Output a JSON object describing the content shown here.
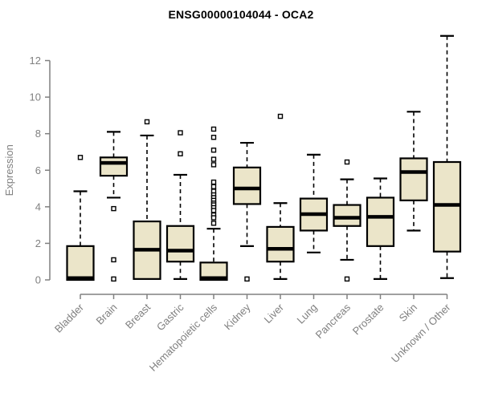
{
  "chart_data": {
    "type": "boxplot",
    "title": "ENSG00000104044 - OCA2",
    "ylabel": "Expression",
    "xlabel": "",
    "yticks": [
      0,
      2,
      4,
      6,
      8,
      10,
      12
    ],
    "ylim": [
      0,
      13.5
    ],
    "grid": false,
    "legend": "none",
    "categories": [
      "Bladder",
      "Brain",
      "Breast",
      "Gastric",
      "Hematopoietic cells",
      "Kidney",
      "Liver",
      "Lung",
      "Pancreas",
      "Prostate",
      "Skin",
      "Unknown / Other"
    ],
    "series": [
      {
        "category": "Bladder",
        "whisker_low": 0.0,
        "q1": 0.0,
        "median": 0.1,
        "q3": 1.85,
        "whisker_high": 4.85,
        "outliers": [
          6.7
        ]
      },
      {
        "category": "Brain",
        "whisker_low": 4.5,
        "q1": 5.7,
        "median": 6.4,
        "q3": 6.7,
        "whisker_high": 8.1,
        "outliers": [
          3.9,
          1.1,
          0.05
        ]
      },
      {
        "category": "Breast",
        "whisker_low": 0.05,
        "q1": 0.05,
        "median": 1.65,
        "q3": 3.2,
        "whisker_high": 7.9,
        "outliers": [
          8.65
        ]
      },
      {
        "category": "Gastric",
        "whisker_low": 0.05,
        "q1": 1.0,
        "median": 1.6,
        "q3": 2.95,
        "whisker_high": 5.75,
        "outliers": [
          8.05,
          6.9
        ]
      },
      {
        "category": "Hematopoietic cells",
        "whisker_low": 0.0,
        "q1": 0.0,
        "median": 0.1,
        "q3": 0.95,
        "whisker_high": 2.8,
        "outliers": [
          8.25,
          7.8,
          7.1,
          6.6,
          6.3,
          5.35,
          5.1,
          4.85,
          4.65,
          4.5,
          4.35,
          4.2,
          4.1,
          3.95,
          3.8,
          3.55,
          3.4,
          3.1
        ]
      },
      {
        "category": "Kidney",
        "whisker_low": 1.85,
        "q1": 4.15,
        "median": 5.0,
        "q3": 6.15,
        "whisker_high": 7.5,
        "outliers": [
          0.05
        ]
      },
      {
        "category": "Liver",
        "whisker_low": 0.05,
        "q1": 1.0,
        "median": 1.7,
        "q3": 2.9,
        "whisker_high": 4.2,
        "outliers": [
          8.95
        ]
      },
      {
        "category": "Lung",
        "whisker_low": 1.5,
        "q1": 2.7,
        "median": 3.6,
        "q3": 4.45,
        "whisker_high": 6.85,
        "outliers": []
      },
      {
        "category": "Pancreas",
        "whisker_low": 1.1,
        "q1": 2.95,
        "median": 3.4,
        "q3": 4.1,
        "whisker_high": 5.5,
        "outliers": [
          6.45,
          0.05
        ]
      },
      {
        "category": "Prostate",
        "whisker_low": 0.05,
        "q1": 1.85,
        "median": 3.45,
        "q3": 4.5,
        "whisker_high": 5.55,
        "outliers": []
      },
      {
        "category": "Skin",
        "whisker_low": 2.7,
        "q1": 4.35,
        "median": 5.9,
        "q3": 6.65,
        "whisker_high": 9.2,
        "outliers": []
      },
      {
        "category": "Unknown / Other",
        "whisker_low": 0.1,
        "q1": 1.55,
        "median": 4.1,
        "q3": 6.45,
        "whisker_high": 13.35,
        "outliers": []
      }
    ],
    "colors": {
      "box_fill": "#EBE5C9",
      "box_border": "#000000",
      "median": "#000000",
      "axis": "#808080",
      "tick_label": "#808080",
      "axis_label": "#808080",
      "title": "#000000",
      "outlier_fill": "#FFFFFF",
      "outlier_border": "#000000",
      "background": "#FFFFFF"
    }
  }
}
